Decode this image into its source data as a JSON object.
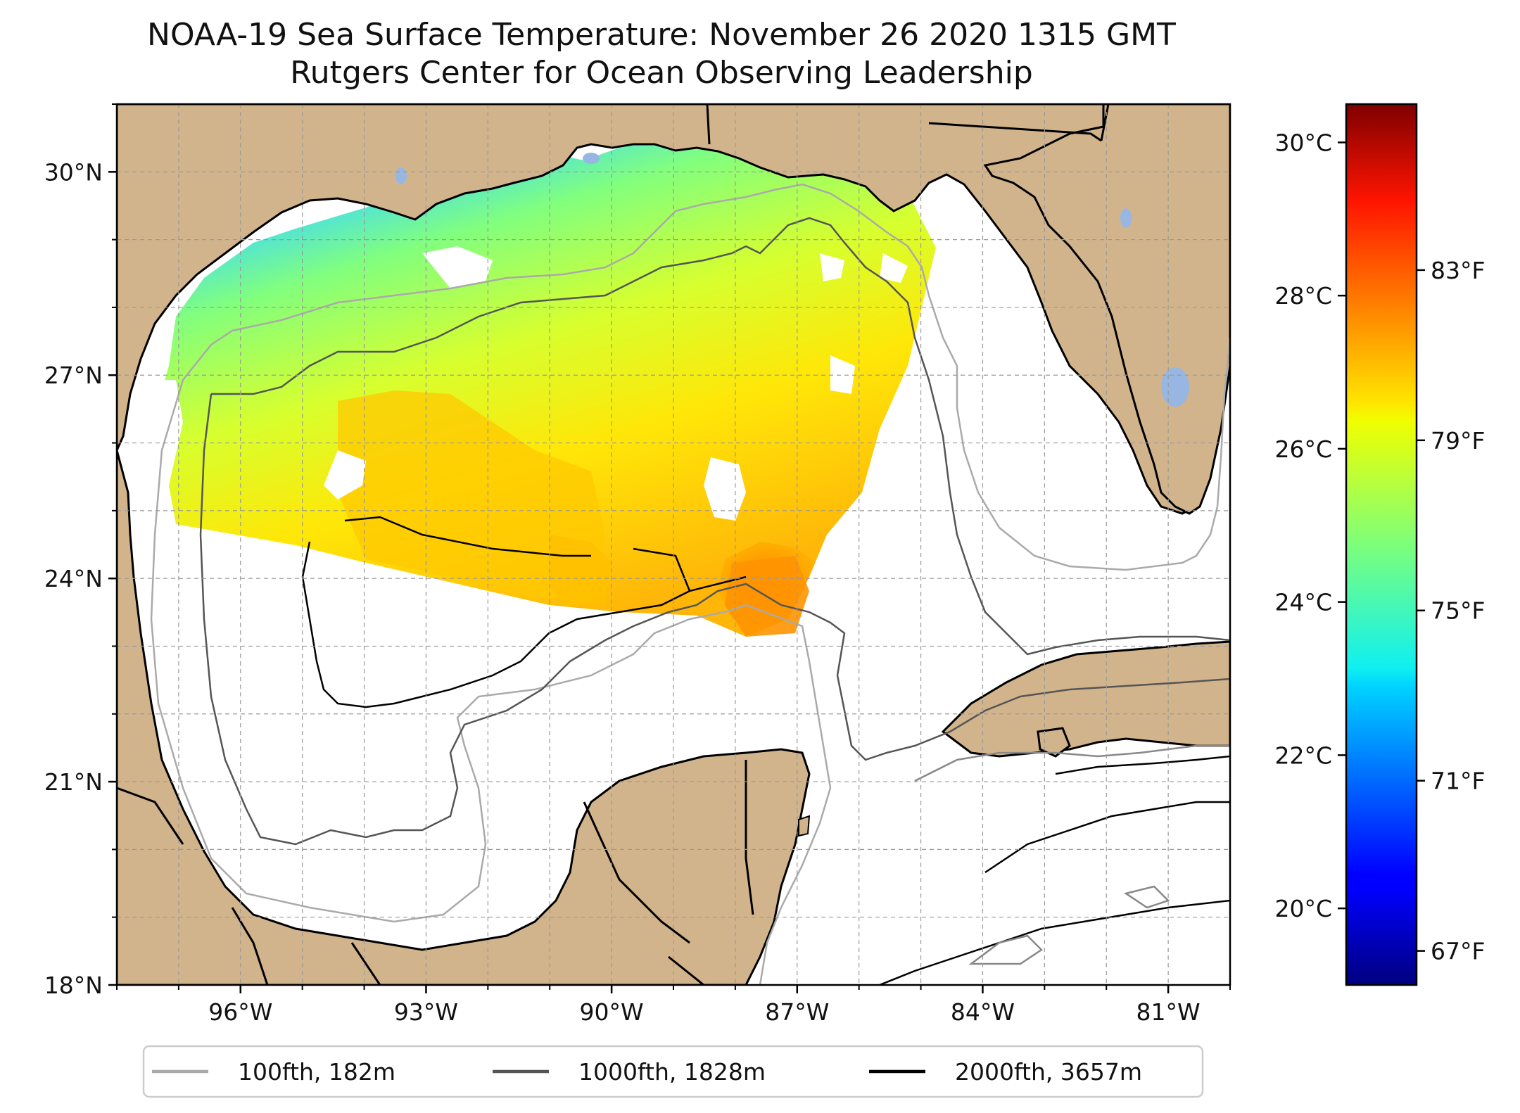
{
  "title": "NOAA-19 Sea Surface Temperature: November 26 2020 1315 GMT",
  "subtitle": "Rutgers Center for Ocean Observing Leadership",
  "map": {
    "lon_range": [
      -98,
      -80
    ],
    "lat_range": [
      18,
      31
    ],
    "lat_ticks": [
      {
        "value": 30,
        "label": "30°N"
      },
      {
        "value": 27,
        "label": "27°N"
      },
      {
        "value": 24,
        "label": "24°N"
      },
      {
        "value": 21,
        "label": "21°N"
      },
      {
        "value": 18,
        "label": "18°N"
      }
    ],
    "lon_ticks": [
      {
        "value": -96,
        "label": "96°W"
      },
      {
        "value": -93,
        "label": "93°W"
      },
      {
        "value": -90,
        "label": "90°W"
      },
      {
        "value": -87,
        "label": "87°W"
      },
      {
        "value": -84,
        "label": "84°W"
      },
      {
        "value": -81,
        "label": "81°W"
      }
    ],
    "land_color": "#d2b48c",
    "ocean_color": "#ffffff",
    "lake_color": "#97b6e1",
    "grid": true
  },
  "colorbar": {
    "colormap": "jet",
    "celsius_range": [
      19,
      30.5
    ],
    "celsius_ticks": [
      {
        "value": 30,
        "label": "30°C"
      },
      {
        "value": 28,
        "label": "28°C"
      },
      {
        "value": 26,
        "label": "26°C"
      },
      {
        "value": 24,
        "label": "24°C"
      },
      {
        "value": 22,
        "label": "22°C"
      },
      {
        "value": 20,
        "label": "20°C"
      }
    ],
    "fahrenheit_ticks": [
      {
        "value": 83,
        "label": "83°F"
      },
      {
        "value": 79,
        "label": "79°F"
      },
      {
        "value": 75,
        "label": "75°F"
      },
      {
        "value": 71,
        "label": "71°F"
      },
      {
        "value": 67,
        "label": "67°F"
      }
    ]
  },
  "legend": [
    {
      "label": "100fth, 182m",
      "color": "#aaaaaa"
    },
    {
      "label": "1000fth, 1828m",
      "color": "#555555"
    },
    {
      "label": "2000fth, 3657m",
      "color": "#000000"
    }
  ]
}
